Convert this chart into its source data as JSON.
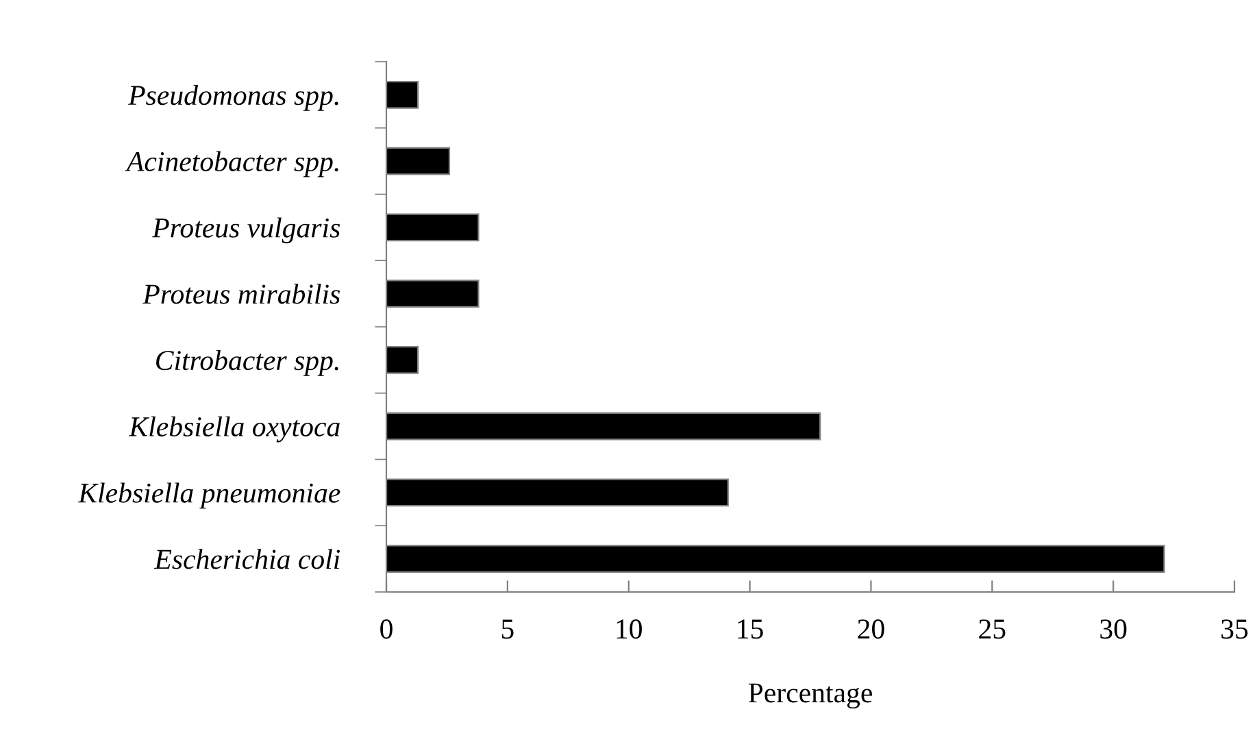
{
  "chart_data": {
    "type": "bar",
    "orientation": "horizontal",
    "xlabel": "Percentage",
    "categories": [
      "Pseudomonas spp.",
      "Acinetobacter spp.",
      "Proteus vulgaris",
      "Proteus mirabilis",
      "Citrobacter spp.",
      "Klebsiella oxytoca",
      "Klebsiella pneumoniae",
      "Escherichia coli"
    ],
    "values": [
      1.3,
      2.6,
      3.8,
      3.8,
      1.3,
      17.9,
      14.1,
      32.1
    ],
    "color": "#000000",
    "xlim": [
      0,
      35
    ],
    "xticks": [
      0,
      5,
      10,
      15,
      20,
      25,
      30,
      35
    ],
    "grid": false,
    "legend": false
  }
}
